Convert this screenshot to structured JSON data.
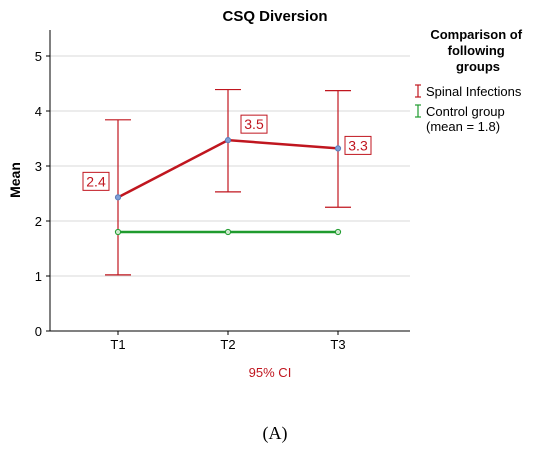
{
  "panel_label": "(A)",
  "colors": {
    "spinal": "#c0161f",
    "control": "#1f9b2e",
    "grid": "#d9d9d9",
    "point_fill": "#7e9fd6",
    "ci_label": "#c0161f"
  },
  "chart_data": {
    "type": "line",
    "title": "CSQ Diversion",
    "xlabel": "95% CI",
    "ylabel": "Mean",
    "categories": [
      "T1",
      "T2",
      "T3"
    ],
    "ylim": [
      0,
      5.5
    ],
    "yticks": [
      0,
      1,
      2,
      3,
      4,
      5
    ],
    "grid": true,
    "legend": {
      "title": "Comparison of following groups",
      "placement": "right",
      "entries": [
        "Spinal Infections",
        "Control group (mean = 1.8)"
      ]
    },
    "series": [
      {
        "name": "Spinal Infections",
        "values": [
          2.43,
          3.47,
          3.32
        ],
        "ci_lower": [
          1.02,
          2.53,
          2.25
        ],
        "ci_upper": [
          3.84,
          4.39,
          4.37
        ],
        "data_labels": [
          "2.4",
          "3.5",
          "3.3"
        ]
      },
      {
        "name": "Control group (mean = 1.8)",
        "values": [
          1.8,
          1.8,
          1.8
        ]
      }
    ]
  }
}
